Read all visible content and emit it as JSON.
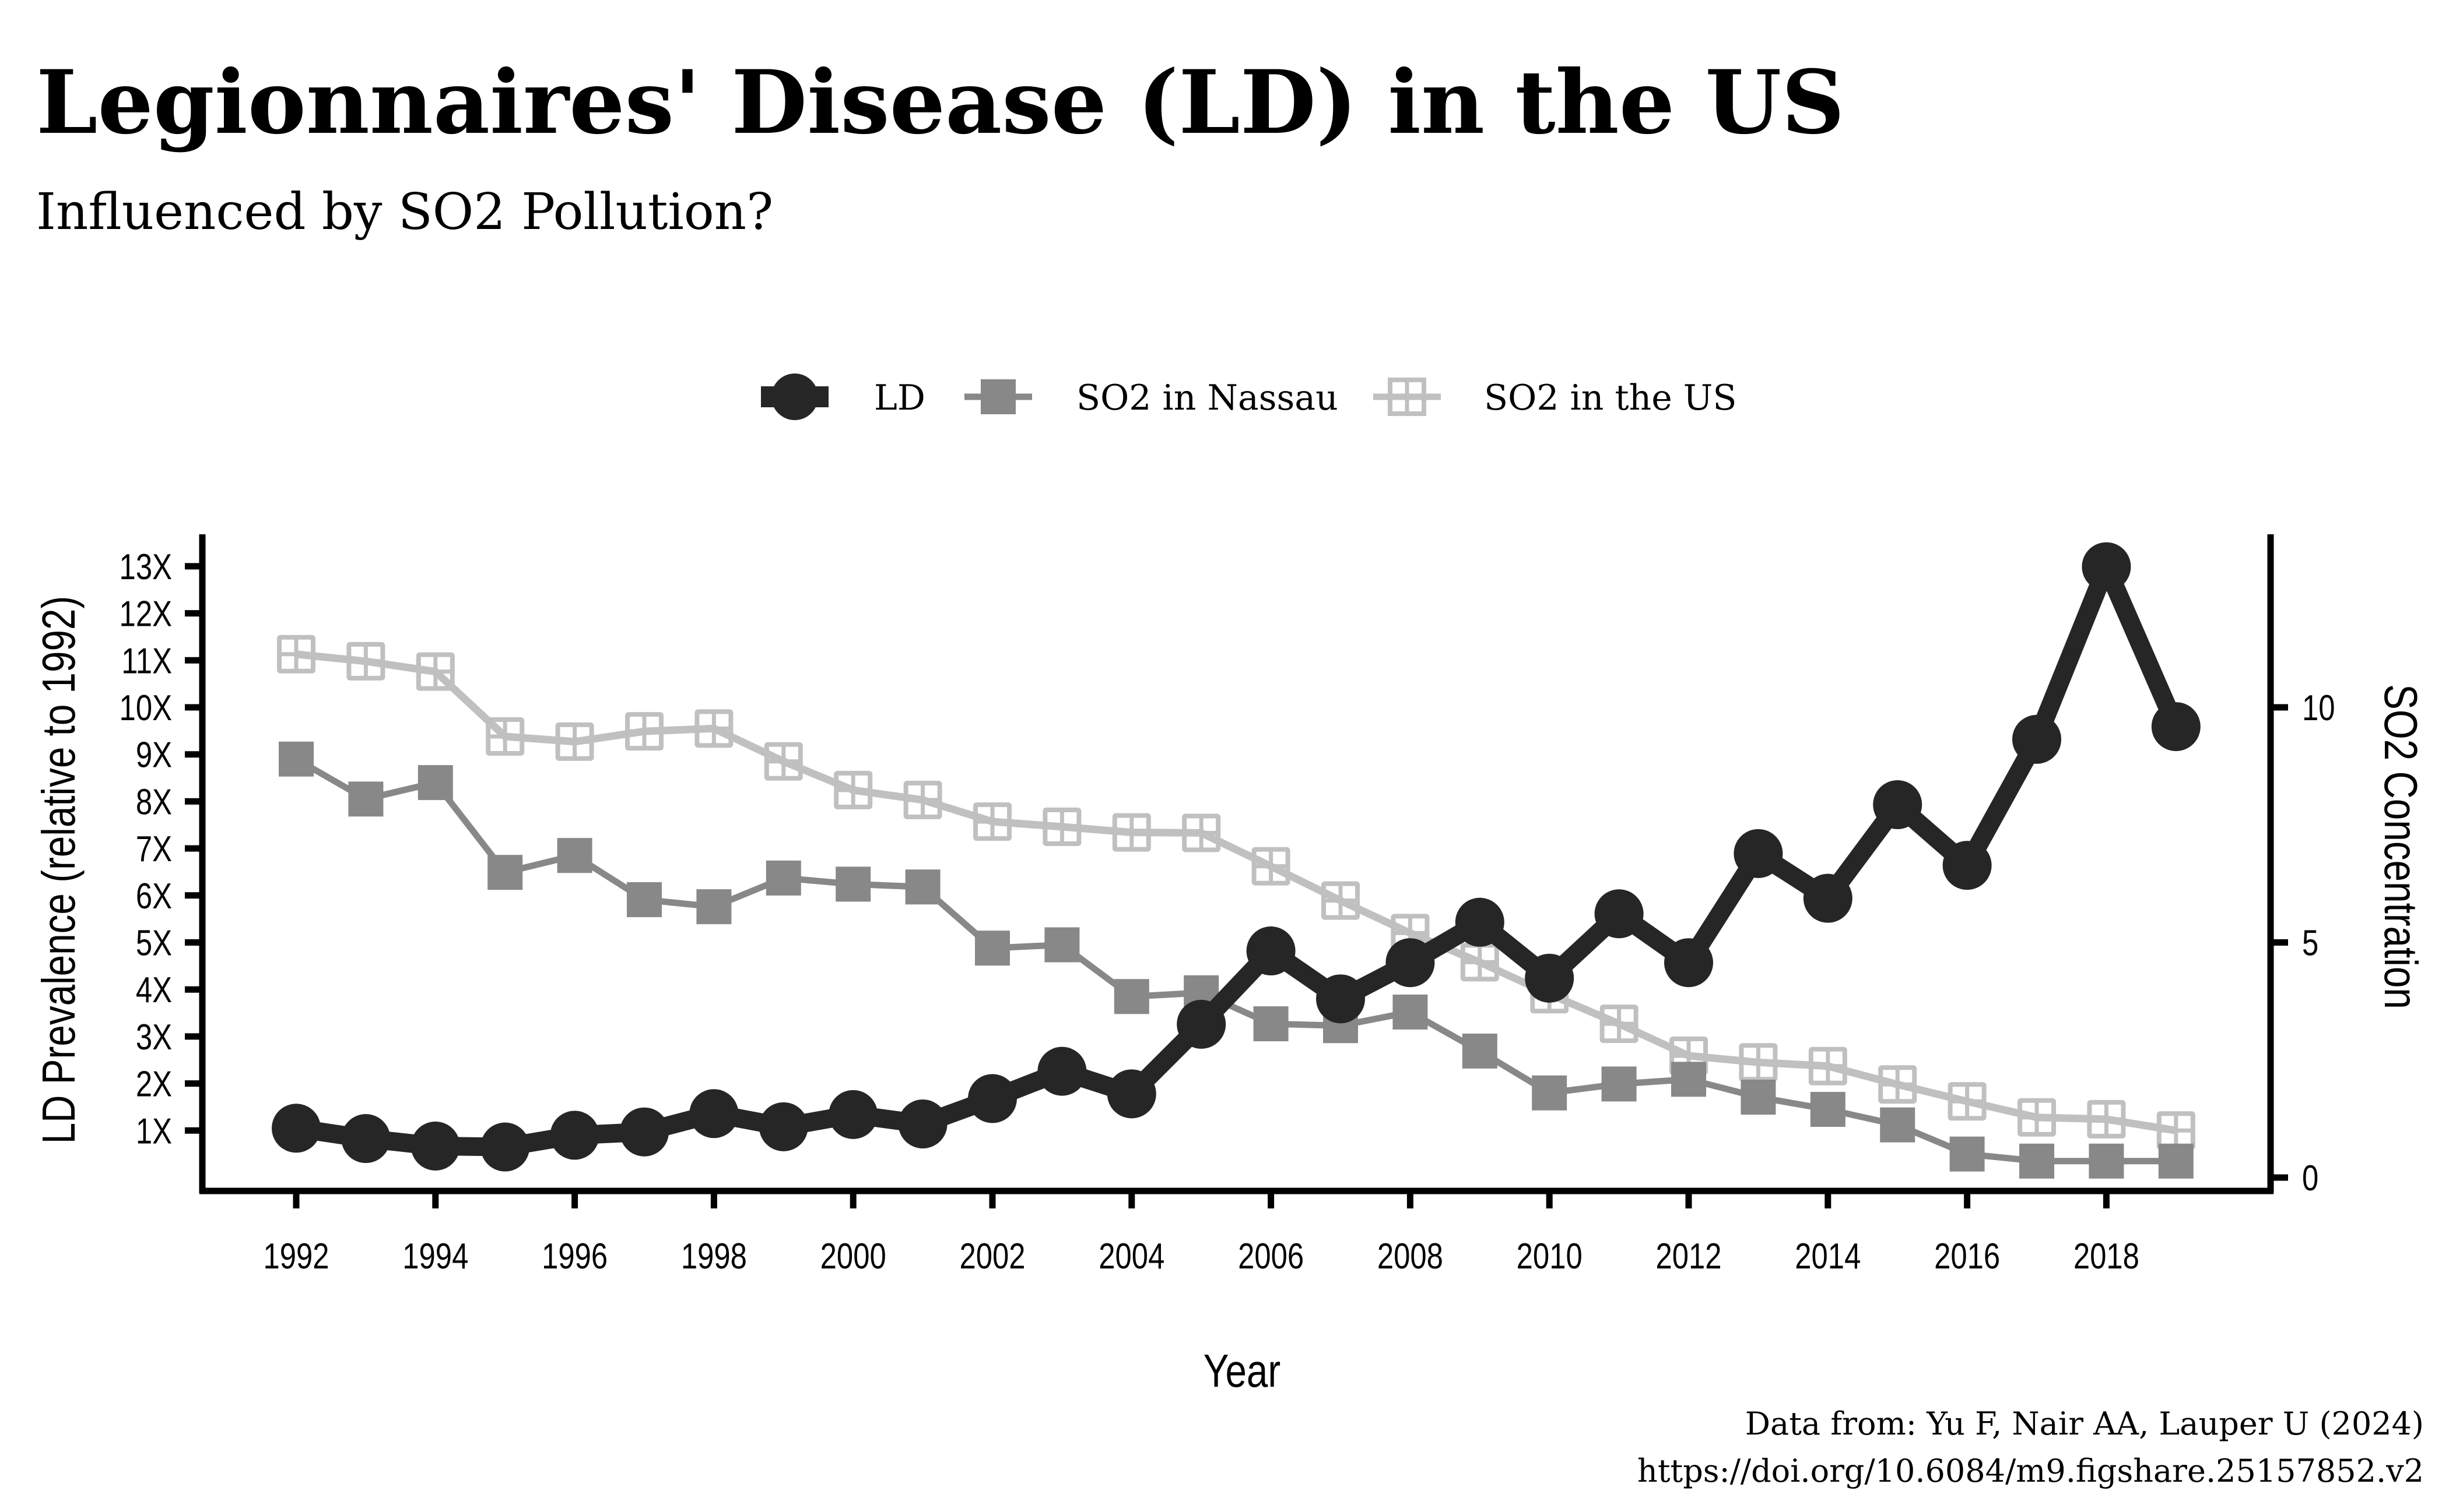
{
  "chart_data": {
    "type": "line",
    "title": "Legionnaires' Disease (LD) in the US",
    "subtitle": "Influenced by SO2 Pollution?",
    "xlabel": "Year",
    "ylabel": "LD Prevalence (relative to 1992)",
    "ylabel_right": "SO2 Concentration",
    "caption": [
      "Data from: Yu F, Nair AA, Lauper U (2024)",
      "https://doi.org/10.6084/m9.figshare.25157852.v2"
    ],
    "x": [
      1992,
      1993,
      1994,
      1995,
      1996,
      1997,
      1998,
      1999,
      2000,
      2001,
      2002,
      2003,
      2004,
      2005,
      2006,
      2007,
      2008,
      2009,
      2010,
      2011,
      2012,
      2013,
      2014,
      2015,
      2016,
      2017,
      2018,
      2019
    ],
    "xlim": [
      1989.4,
      2021.2
    ],
    "x_ticks": [
      1992,
      1994,
      1996,
      1998,
      2000,
      2002,
      2004,
      2006,
      2008,
      2010,
      2012,
      2014,
      2016,
      2018
    ],
    "x_tick_labels": [
      "1992",
      "1994",
      "1996",
      "1998",
      "2000",
      "2002",
      "2004",
      "2006",
      "2008",
      "2010",
      "2012",
      "2014",
      "2016",
      "2018"
    ],
    "ylim": [
      -0.3,
      13.4
    ],
    "y_ticks_left": [
      1,
      2,
      3,
      4,
      5,
      6,
      7,
      8,
      9,
      10,
      11,
      12,
      13
    ],
    "y_tick_labels_left": [
      "1X",
      "2X",
      "3X",
      "4X",
      "5X",
      "6X",
      "7X",
      "8X",
      "9X",
      "10X",
      "11X",
      "12X",
      "13X"
    ],
    "y_ticks_right": [
      0,
      5,
      10
    ],
    "y_tick_labels_right": [
      "0",
      "5",
      "10"
    ],
    "grid": false,
    "legend_position": "top-center",
    "series": [
      {
        "name": "LD",
        "axis": "left",
        "color": "#262626",
        "marker": "circle",
        "values": [
          1.05,
          0.83,
          0.67,
          0.65,
          0.9,
          0.97,
          1.36,
          1.08,
          1.34,
          1.14,
          1.68,
          2.26,
          1.78,
          3.26,
          4.82,
          3.8,
          4.57,
          5.43,
          4.24,
          5.61,
          4.57,
          6.89,
          5.94,
          7.93,
          6.64,
          9.32,
          12.99,
          9.59
        ]
      },
      {
        "name": "SO2 in Nassau",
        "axis": "right",
        "color": "#888888",
        "marker": "square-filled",
        "values": [
          8.9,
          8.05,
          8.4,
          6.49,
          6.85,
          5.91,
          5.76,
          6.37,
          6.24,
          6.18,
          4.88,
          4.95,
          3.85,
          3.93,
          3.27,
          3.23,
          3.52,
          2.69,
          1.8,
          1.99,
          2.09,
          1.71,
          1.45,
          1.12,
          0.5,
          0.35,
          0.35,
          0.35
        ]
      },
      {
        "name": "SO2 in the US",
        "axis": "right",
        "color": "#c0c0c0",
        "marker": "square-open-cross",
        "values": [
          11.13,
          10.98,
          10.76,
          9.38,
          9.27,
          9.49,
          9.55,
          8.85,
          8.24,
          8.03,
          7.57,
          7.46,
          7.34,
          7.33,
          6.62,
          5.89,
          5.2,
          4.58,
          3.9,
          3.27,
          2.59,
          2.45,
          2.37,
          1.98,
          1.62,
          1.28,
          1.24,
          1.0
        ]
      }
    ]
  }
}
